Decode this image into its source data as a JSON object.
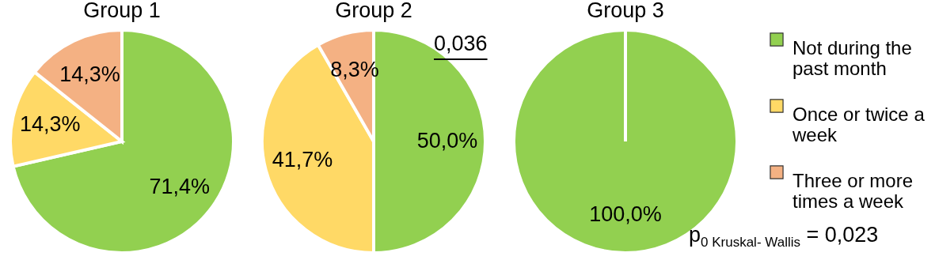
{
  "chart_data": {
    "type": "pie",
    "categories": [
      "Not during the past month",
      "Once or twice a week",
      "Three or more times a week"
    ],
    "colors": [
      "#92d050",
      "#ffd966",
      "#f4b183"
    ],
    "legend": "right",
    "series": [
      {
        "name": "Group 1",
        "values": [
          71.4,
          14.3,
          14.3
        ],
        "value_labels": [
          "71,4%",
          "14,3%",
          "14,3%"
        ]
      },
      {
        "name": "Group 2",
        "values": [
          50.0,
          41.7,
          8.3
        ],
        "value_labels": [
          "50,0%",
          "41,7%",
          "8,3%"
        ]
      },
      {
        "name": "Group 3",
        "values": [
          100.0,
          0,
          0
        ],
        "value_labels": [
          "100,0%",
          null,
          null
        ]
      }
    ],
    "annotations": [
      "0,036",
      "p$_{0 Kruskal- Wallis}$ = 0,023"
    ]
  }
}
